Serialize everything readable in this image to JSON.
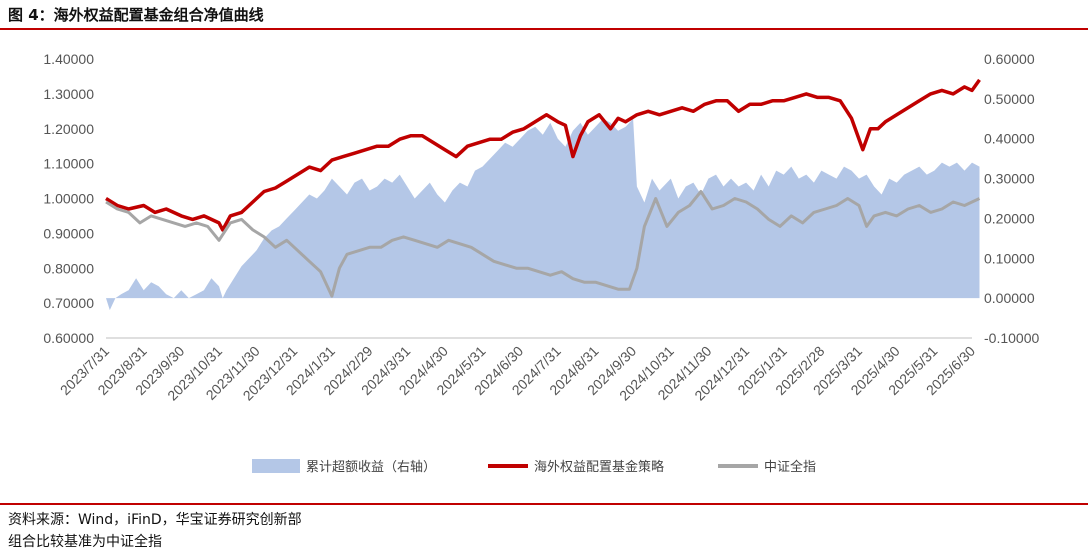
{
  "figure_title": "图 4：海外权益配置基金组合净值曲线",
  "footer": {
    "source": "资料来源：Wind，iFinD，华宝证券研究创新部",
    "note": "组合比较基准为中证全指"
  },
  "colors": {
    "excess": "#b4c7e7",
    "strategy": "#c00000",
    "index": "#a6a6a6",
    "rule": "#c00000"
  },
  "chart_data": {
    "type": "line",
    "x_ticks": [
      "2023/7/31",
      "2023/8/31",
      "2023/9/30",
      "2023/10/31",
      "2023/11/30",
      "2023/12/31",
      "2024/1/31",
      "2024/2/29",
      "2024/3/31",
      "2024/4/30",
      "2024/5/31",
      "2024/6/30",
      "2024/7/31",
      "2024/8/31",
      "2024/9/30",
      "2024/10/31",
      "2024/11/30",
      "2024/12/31",
      "2025/1/31",
      "2025/2/28",
      "2025/3/31",
      "2025/4/30",
      "2025/5/31",
      "2025/6/30"
    ],
    "y_left": {
      "ylim": [
        0.6,
        1.4
      ],
      "ticks": [
        "0.60000",
        "0.70000",
        "0.80000",
        "0.90000",
        "1.00000",
        "1.10000",
        "1.20000",
        "1.30000",
        "1.40000"
      ]
    },
    "y_right": {
      "ylim": [
        -0.1,
        0.6
      ],
      "ticks": [
        "-0.10000",
        "0.00000",
        "0.10000",
        "0.20000",
        "0.30000",
        "0.40000",
        "0.50000",
        "0.60000"
      ]
    },
    "series": [
      {
        "name": "累计超额收益（右轴）",
        "type": "area",
        "axis": "right",
        "x": [
          0,
          0.1,
          0.25,
          0.4,
          0.6,
          0.8,
          1,
          1.2,
          1.4,
          1.6,
          1.8,
          2,
          2.2,
          2.4,
          2.6,
          2.8,
          3,
          3.1,
          3.2,
          3.4,
          3.6,
          3.8,
          4,
          4.2,
          4.4,
          4.6,
          4.8,
          5,
          5.2,
          5.4,
          5.6,
          5.8,
          6,
          6.2,
          6.4,
          6.6,
          6.8,
          7,
          7.2,
          7.4,
          7.6,
          7.8,
          8,
          8.2,
          8.4,
          8.6,
          8.8,
          9,
          9.2,
          9.4,
          9.6,
          9.8,
          10,
          10.2,
          10.4,
          10.6,
          10.8,
          11,
          11.2,
          11.4,
          11.6,
          11.8,
          12,
          12.2,
          12.4,
          12.6,
          12.8,
          13,
          13.2,
          13.4,
          13.6,
          13.8,
          14,
          14.1,
          14.3,
          14.5,
          14.7,
          15,
          15.2,
          15.4,
          15.6,
          15.8,
          16,
          16.2,
          16.4,
          16.6,
          16.8,
          17,
          17.2,
          17.4,
          17.6,
          17.8,
          18,
          18.2,
          18.4,
          18.6,
          18.8,
          19,
          19.2,
          19.4,
          19.6,
          19.8,
          20,
          20.2,
          20.4,
          20.6,
          20.8,
          21,
          21.2,
          21.4,
          21.6,
          21.8,
          22,
          22.2,
          22.4,
          22.6,
          22.8,
          23,
          23.2
        ],
        "values": [
          0.0,
          -0.03,
          0.0,
          0.01,
          0.02,
          0.05,
          0.02,
          0.04,
          0.03,
          0.01,
          0.0,
          0.02,
          0.0,
          0.01,
          0.02,
          0.05,
          0.03,
          0.0,
          0.02,
          0.05,
          0.08,
          0.1,
          0.12,
          0.15,
          0.17,
          0.18,
          0.2,
          0.22,
          0.24,
          0.26,
          0.25,
          0.27,
          0.3,
          0.28,
          0.26,
          0.29,
          0.3,
          0.27,
          0.28,
          0.3,
          0.29,
          0.31,
          0.28,
          0.25,
          0.27,
          0.29,
          0.26,
          0.24,
          0.27,
          0.29,
          0.28,
          0.32,
          0.33,
          0.35,
          0.37,
          0.39,
          0.38,
          0.4,
          0.42,
          0.43,
          0.41,
          0.44,
          0.4,
          0.38,
          0.42,
          0.44,
          0.41,
          0.43,
          0.45,
          0.44,
          0.42,
          0.43,
          0.45,
          0.28,
          0.24,
          0.3,
          0.27,
          0.3,
          0.25,
          0.28,
          0.29,
          0.26,
          0.3,
          0.31,
          0.28,
          0.3,
          0.28,
          0.29,
          0.27,
          0.31,
          0.28,
          0.32,
          0.31,
          0.33,
          0.3,
          0.31,
          0.29,
          0.32,
          0.31,
          0.3,
          0.33,
          0.32,
          0.3,
          0.31,
          0.28,
          0.26,
          0.3,
          0.29,
          0.31,
          0.32,
          0.33,
          0.31,
          0.32,
          0.34,
          0.33,
          0.34,
          0.32,
          0.34,
          0.33
        ]
      },
      {
        "name": "海外权益配置基金策略",
        "type": "line",
        "axis": "left",
        "x": [
          0,
          0.3,
          0.6,
          1,
          1.3,
          1.6,
          2,
          2.3,
          2.6,
          3,
          3.1,
          3.3,
          3.6,
          3.9,
          4.2,
          4.5,
          4.8,
          5.1,
          5.4,
          5.7,
          6,
          6.3,
          6.6,
          6.9,
          7.2,
          7.5,
          7.8,
          8.1,
          8.4,
          8.7,
          9,
          9.3,
          9.6,
          9.9,
          10.2,
          10.5,
          10.8,
          11.1,
          11.4,
          11.7,
          12,
          12.2,
          12.4,
          12.6,
          12.8,
          13.1,
          13.4,
          13.6,
          13.8,
          14.1,
          14.4,
          14.7,
          15,
          15.3,
          15.6,
          15.9,
          16.2,
          16.5,
          16.8,
          17.1,
          17.4,
          17.7,
          18,
          18.3,
          18.6,
          18.9,
          19.2,
          19.5,
          19.8,
          20.1,
          20.3,
          20.5,
          20.7,
          21,
          21.3,
          21.6,
          21.9,
          22.2,
          22.5,
          22.8,
          23,
          23.2
        ],
        "values": [
          1.0,
          0.98,
          0.97,
          0.98,
          0.96,
          0.97,
          0.95,
          0.94,
          0.95,
          0.93,
          0.91,
          0.95,
          0.96,
          0.99,
          1.02,
          1.03,
          1.05,
          1.07,
          1.09,
          1.08,
          1.11,
          1.12,
          1.13,
          1.14,
          1.15,
          1.15,
          1.17,
          1.18,
          1.18,
          1.16,
          1.14,
          1.12,
          1.15,
          1.16,
          1.17,
          1.17,
          1.19,
          1.2,
          1.22,
          1.24,
          1.22,
          1.21,
          1.12,
          1.18,
          1.22,
          1.24,
          1.2,
          1.23,
          1.22,
          1.24,
          1.25,
          1.24,
          1.25,
          1.26,
          1.25,
          1.27,
          1.28,
          1.28,
          1.25,
          1.27,
          1.27,
          1.28,
          1.28,
          1.29,
          1.3,
          1.29,
          1.29,
          1.28,
          1.23,
          1.14,
          1.2,
          1.2,
          1.22,
          1.24,
          1.26,
          1.28,
          1.3,
          1.31,
          1.3,
          1.32,
          1.31,
          1.34
        ]
      },
      {
        "name": "中证全指",
        "type": "line",
        "axis": "left",
        "x": [
          0,
          0.3,
          0.6,
          0.9,
          1.2,
          1.5,
          1.8,
          2.1,
          2.4,
          2.7,
          3,
          3.3,
          3.6,
          3.9,
          4.2,
          4.5,
          4.8,
          5.1,
          5.4,
          5.7,
          6,
          6.2,
          6.4,
          6.7,
          7,
          7.3,
          7.6,
          7.9,
          8.2,
          8.5,
          8.8,
          9.1,
          9.4,
          9.7,
          10,
          10.3,
          10.6,
          10.9,
          11.2,
          11.5,
          11.8,
          12.1,
          12.4,
          12.7,
          13,
          13.3,
          13.6,
          13.9,
          14.1,
          14.3,
          14.6,
          14.9,
          15.2,
          15.5,
          15.8,
          16.1,
          16.4,
          16.7,
          17,
          17.3,
          17.6,
          17.9,
          18.2,
          18.5,
          18.8,
          19.1,
          19.4,
          19.7,
          20,
          20.2,
          20.4,
          20.7,
          21,
          21.3,
          21.6,
          21.9,
          22.2,
          22.5,
          22.8,
          23,
          23.2
        ],
        "values": [
          0.99,
          0.97,
          0.96,
          0.93,
          0.95,
          0.94,
          0.93,
          0.92,
          0.93,
          0.92,
          0.88,
          0.93,
          0.94,
          0.91,
          0.89,
          0.86,
          0.88,
          0.85,
          0.82,
          0.79,
          0.72,
          0.8,
          0.84,
          0.85,
          0.86,
          0.86,
          0.88,
          0.89,
          0.88,
          0.87,
          0.86,
          0.88,
          0.87,
          0.86,
          0.84,
          0.82,
          0.81,
          0.8,
          0.8,
          0.79,
          0.78,
          0.79,
          0.77,
          0.76,
          0.76,
          0.75,
          0.74,
          0.74,
          0.8,
          0.92,
          1.0,
          0.92,
          0.96,
          0.98,
          1.02,
          0.97,
          0.98,
          1.0,
          0.99,
          0.97,
          0.94,
          0.92,
          0.95,
          0.93,
          0.96,
          0.97,
          0.98,
          1.0,
          0.98,
          0.92,
          0.95,
          0.96,
          0.95,
          0.97,
          0.98,
          0.96,
          0.97,
          0.99,
          0.98,
          0.99,
          1.0
        ]
      }
    ],
    "legend_position": "bottom"
  }
}
